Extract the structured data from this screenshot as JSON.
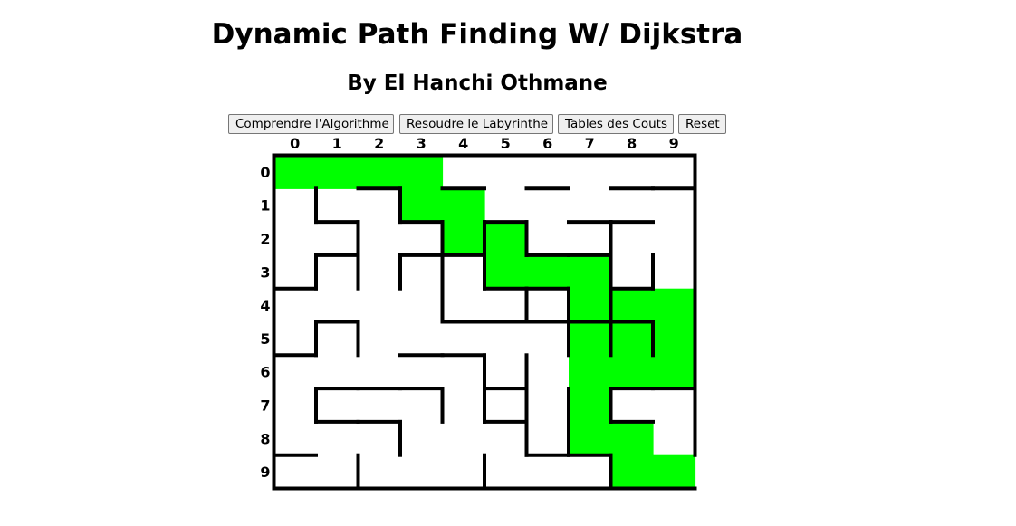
{
  "header": {
    "title": "Dynamic Path Finding W/ Dijkstra",
    "subtitle": "By El Hanchi Othmane"
  },
  "toolbar": {
    "understand_label": "Comprendre l'Algorithme",
    "solve_label": "Resoudre le Labyrinthe",
    "costs_label": "Tables des Couts",
    "reset_label": "Reset"
  },
  "maze": {
    "rows": 10,
    "cols": 10,
    "column_labels": [
      "0",
      "1",
      "2",
      "3",
      "4",
      "5",
      "6",
      "7",
      "8",
      "9"
    ],
    "row_labels": [
      "0",
      "1",
      "2",
      "3",
      "4",
      "5",
      "6",
      "7",
      "8",
      "9"
    ],
    "path_color": "#00ff00",
    "wall_color": "#000000",
    "path": [
      [
        0,
        0
      ],
      [
        0,
        1
      ],
      [
        0,
        2
      ],
      [
        0,
        3
      ],
      [
        1,
        3
      ],
      [
        1,
        4
      ],
      [
        2,
        4
      ],
      [
        2,
        5
      ],
      [
        3,
        5
      ],
      [
        3,
        6
      ],
      [
        3,
        7
      ],
      [
        4,
        7
      ],
      [
        4,
        8
      ],
      [
        4,
        9
      ],
      [
        5,
        7
      ],
      [
        5,
        8
      ],
      [
        5,
        9
      ],
      [
        6,
        7
      ],
      [
        6,
        8
      ],
      [
        6,
        9
      ],
      [
        7,
        7
      ],
      [
        8,
        7
      ],
      [
        8,
        8
      ],
      [
        9,
        8
      ],
      [
        9,
        9
      ]
    ],
    "h_walls": [
      [
        1,
        2
      ],
      [
        1,
        4
      ],
      [
        1,
        6
      ],
      [
        1,
        8
      ],
      [
        1,
        9
      ],
      [
        2,
        1
      ],
      [
        2,
        3
      ],
      [
        2,
        5
      ],
      [
        2,
        7
      ],
      [
        2,
        8
      ],
      [
        3,
        1
      ],
      [
        3,
        3
      ],
      [
        3,
        4
      ],
      [
        3,
        6
      ],
      [
        3,
        7
      ],
      [
        4,
        0
      ],
      [
        4,
        5
      ],
      [
        4,
        6
      ],
      [
        4,
        8
      ],
      [
        5,
        1
      ],
      [
        5,
        4
      ],
      [
        5,
        5
      ],
      [
        5,
        6
      ],
      [
        5,
        7
      ],
      [
        5,
        8
      ],
      [
        6,
        0
      ],
      [
        6,
        3
      ],
      [
        6,
        4
      ],
      [
        7,
        1
      ],
      [
        7,
        2
      ],
      [
        7,
        3
      ],
      [
        7,
        5
      ],
      [
        7,
        8
      ],
      [
        7,
        9
      ],
      [
        8,
        1
      ],
      [
        8,
        2
      ],
      [
        8,
        5
      ],
      [
        8,
        8
      ],
      [
        9,
        0
      ],
      [
        9,
        6
      ],
      [
        9,
        7
      ]
    ],
    "v_walls": [
      [
        1,
        1
      ],
      [
        1,
        3
      ],
      [
        1,
        5
      ],
      [
        1,
        7
      ],
      [
        2,
        2
      ],
      [
        2,
        3
      ],
      [
        2,
        5
      ],
      [
        2,
        9
      ],
      [
        3,
        1
      ],
      [
        3,
        3
      ],
      [
        3,
        8
      ],
      [
        4,
        2
      ],
      [
        4,
        3
      ],
      [
        4,
        4
      ],
      [
        4,
        7
      ],
      [
        5,
        2
      ],
      [
        5,
        3
      ],
      [
        5,
        6
      ],
      [
        5,
        7
      ],
      [
        5,
        9
      ],
      [
        6,
        2
      ],
      [
        6,
        4
      ],
      [
        6,
        6
      ],
      [
        6,
        7
      ],
      [
        6,
        8
      ],
      [
        7,
        4
      ],
      [
        7,
        5
      ],
      [
        7,
        7
      ],
      [
        7,
        8
      ],
      [
        8,
        2
      ],
      [
        8,
        3
      ],
      [
        8,
        4
      ],
      [
        8,
        5
      ],
      [
        8,
        7
      ],
      [
        8,
        9
      ],
      [
        9,
        3
      ],
      [
        9,
        5
      ]
    ]
  }
}
